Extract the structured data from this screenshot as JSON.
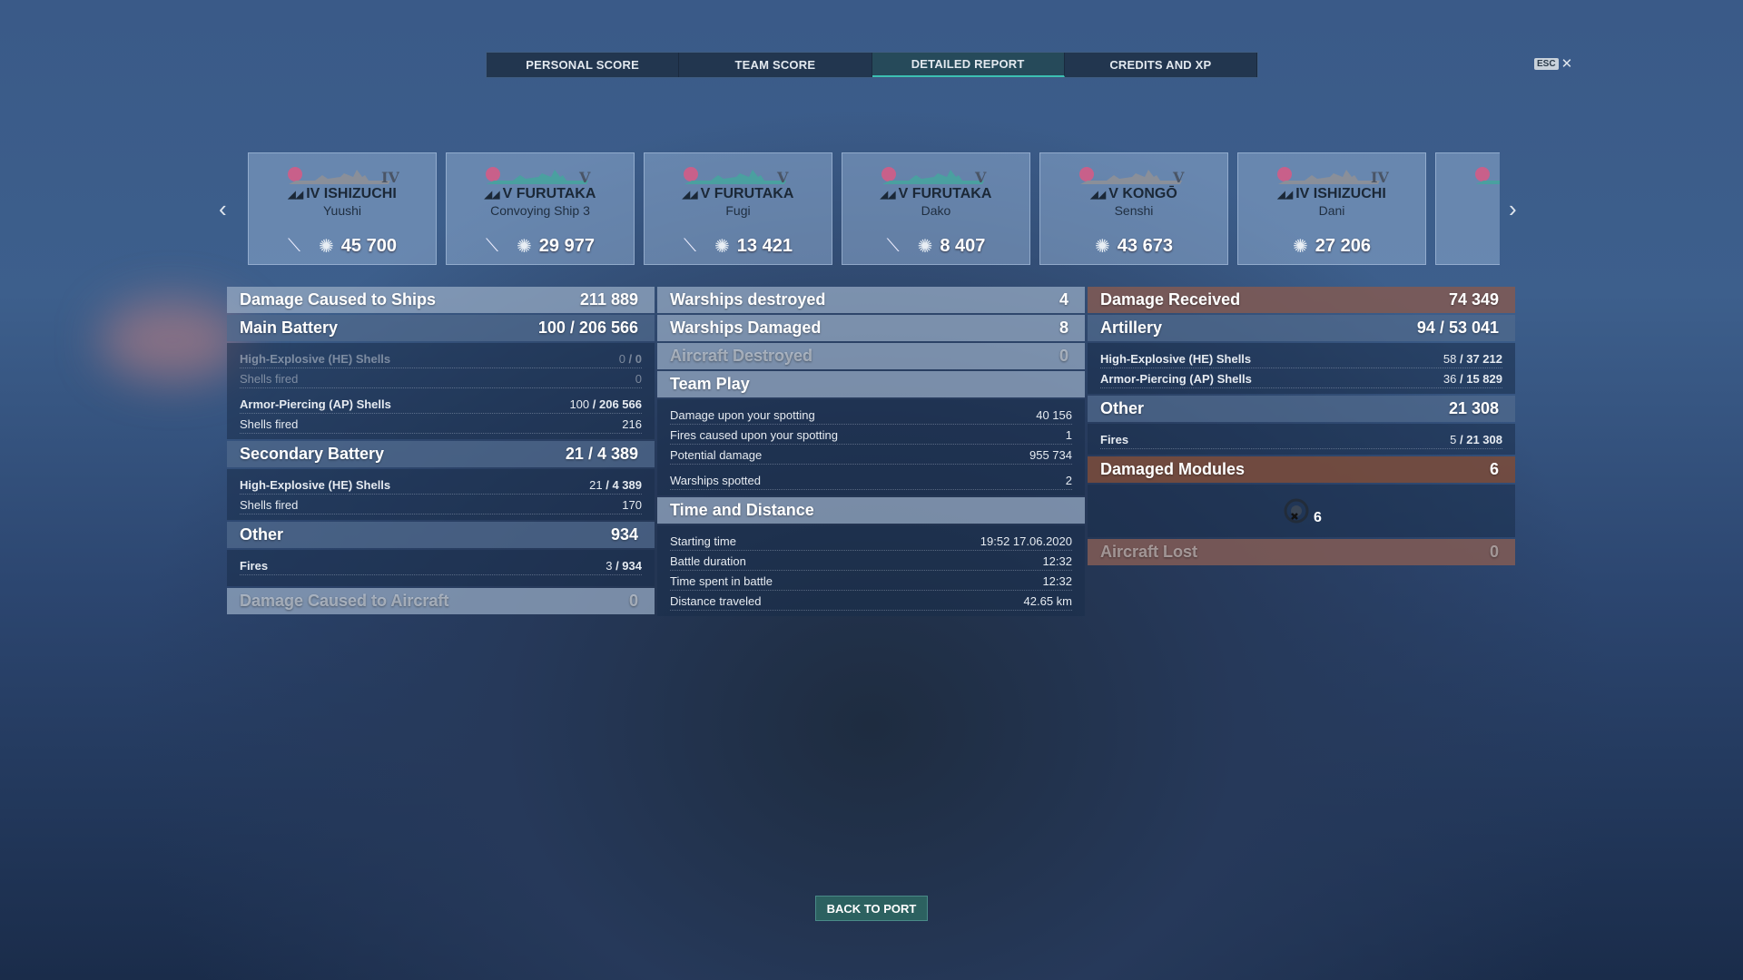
{
  "tabs": [
    "PERSONAL SCORE",
    "TEAM SCORE",
    "DETAILED REPORT",
    "CREDITS AND XP"
  ],
  "active_tab": 2,
  "esc_label": "ESC",
  "close_glyph": "✕",
  "ships": [
    {
      "tier_name": "IV ISHIZUCHI",
      "player": "Yuushi",
      "damage": "45 700",
      "sunk": true,
      "tier": "IV",
      "color": "#8a8f99"
    },
    {
      "tier_name": "V FURUTAKA",
      "player": "Convoying Ship 3",
      "damage": "29 977",
      "sunk": true,
      "tier": "V",
      "color": "#4aa0a0"
    },
    {
      "tier_name": "V FURUTAKA",
      "player": "Fugi",
      "damage": "13 421",
      "sunk": true,
      "tier": "V",
      "color": "#4aa0a0"
    },
    {
      "tier_name": "V FURUTAKA",
      "player": "Dako",
      "damage": "8 407",
      "sunk": true,
      "tier": "V",
      "color": "#4aa0a0"
    },
    {
      "tier_name": "V KONGŌ",
      "player": "Senshi",
      "damage": "43 673",
      "sunk": false,
      "tier": "V",
      "color": "#8a8f99"
    },
    {
      "tier_name": "IV ISHIZUCHI",
      "player": "Dani",
      "damage": "27 206",
      "sunk": false,
      "tier": "IV",
      "color": "#8a8f99"
    }
  ],
  "left": {
    "title": "Damage Caused to Ships",
    "total": "211 889",
    "main": {
      "label": "Main Battery",
      "hits": "100",
      "dmg": "206 566"
    },
    "main_rows": [
      {
        "label": "High-Explosive (HE) Shells",
        "hits": "0",
        "dmg": "0",
        "bold": true,
        "faint": true
      },
      {
        "label": "Shells fired",
        "value": "0",
        "faint": true
      },
      {
        "label": "Armor-Piercing (AP) Shells",
        "hits": "100",
        "dmg": "206 566",
        "bold": true,
        "gap": true
      },
      {
        "label": "Shells fired",
        "value": "216"
      }
    ],
    "secondary": {
      "label": "Secondary Battery",
      "hits": "21",
      "dmg": "4 389"
    },
    "secondary_rows": [
      {
        "label": "High-Explosive (HE) Shells",
        "hits": "21",
        "dmg": "4 389",
        "bold": true
      },
      {
        "label": "Shells fired",
        "value": "170"
      }
    ],
    "other": {
      "label": "Other",
      "value": "934"
    },
    "other_rows": [
      {
        "label": "Fires",
        "hits": "3",
        "dmg": "934",
        "bold": true
      }
    ],
    "aircraft": {
      "label": "Damage Caused to Aircraft",
      "value": "0"
    }
  },
  "middle": {
    "destroyed": {
      "label": "Warships destroyed",
      "value": "4"
    },
    "damaged": {
      "label": "Warships Damaged",
      "value": "8"
    },
    "aircraft": {
      "label": "Aircraft Destroyed",
      "value": "0"
    },
    "team_play": "Team Play",
    "team_rows": [
      {
        "label": "Damage upon your spotting",
        "value": "40 156"
      },
      {
        "label": "Fires caused upon your spotting",
        "value": "1"
      },
      {
        "label": "Potential damage",
        "value": "955 734"
      },
      {
        "label": "Warships spotted",
        "value": "2",
        "gap": true
      }
    ],
    "time_title": "Time and Distance",
    "time_rows": [
      {
        "label": "Starting time",
        "value": "19:52  17.06.2020"
      },
      {
        "label": "Battle duration",
        "value": "12:32"
      },
      {
        "label": "Time spent in battle",
        "value": "12:32"
      },
      {
        "label": "Distance traveled",
        "value": "42.65 km"
      }
    ]
  },
  "right": {
    "title": "Damage Received",
    "total": "74 349",
    "artillery": {
      "label": "Artillery",
      "hits": "94",
      "dmg": "53 041"
    },
    "artillery_rows": [
      {
        "label": "High-Explosive (HE) Shells",
        "hits": "58",
        "dmg": "37 212",
        "bold": true
      },
      {
        "label": "Armor-Piercing (AP) Shells",
        "hits": "36",
        "dmg": "15 829",
        "bold": true
      }
    ],
    "other": {
      "label": "Other",
      "value": "21 308"
    },
    "other_rows": [
      {
        "label": "Fires",
        "hits": "5",
        "dmg": "21 308",
        "bold": true
      }
    ],
    "modules": {
      "label": "Damaged Modules",
      "value": "6",
      "icon_count": "6"
    },
    "aircraft_lost": {
      "label": "Aircraft Lost",
      "value": "0"
    }
  },
  "back_button": "BACK TO PORT"
}
